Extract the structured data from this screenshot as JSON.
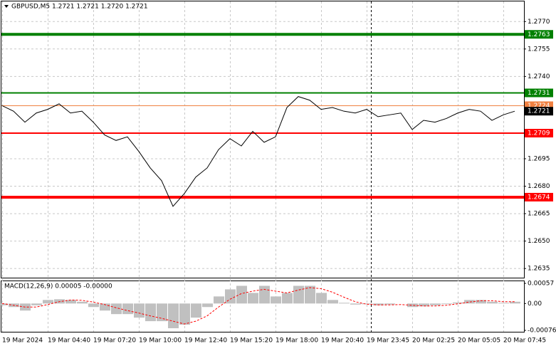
{
  "chart_data": [
    {
      "type": "line",
      "title": "GBPUSD,M5  1.2721 1.2721 1.2720 1.2721",
      "categories": [
        "19 Mar 2024",
        null,
        null,
        null,
        "19 Mar 04:40",
        null,
        null,
        null,
        "19 Mar 07:20",
        null,
        null,
        null,
        "19 Mar 10:00",
        null,
        null,
        null,
        "19 Mar 12:40",
        null,
        null,
        null,
        "19 Mar 15:20",
        null,
        null,
        null,
        "19 Mar 18:00",
        null,
        null,
        null,
        "19 Mar 20:40",
        null,
        null,
        null,
        "19 Mar 23:45",
        null,
        null,
        null,
        "20 Mar 02:25",
        null,
        null,
        null,
        "20 Mar 05:05",
        null,
        null,
        null,
        "20 Mar 07:45",
        null
      ],
      "values": [
        1.2724,
        1.2721,
        1.2715,
        1.272,
        1.2722,
        1.2725,
        1.272,
        1.2721,
        1.2715,
        1.2708,
        1.2705,
        1.2707,
        1.2699,
        1.269,
        1.2683,
        1.2669,
        1.2676,
        1.2685,
        1.269,
        1.27,
        1.2706,
        1.2702,
        1.271,
        1.2704,
        1.2707,
        1.2723,
        1.2729,
        1.2727,
        1.2722,
        1.2723,
        1.2721,
        1.272,
        1.2722,
        1.2718,
        1.2719,
        1.272,
        1.2711,
        1.2716,
        1.2715,
        1.2717,
        1.272,
        1.2722,
        1.2721,
        1.2716,
        1.2719,
        1.2721
      ],
      "color": "#000000",
      "ylim": [
        1.263,
        1.2781
      ],
      "yticks": [
        {
          "value": 1.277,
          "label": "1.2770"
        },
        1.2755,
        {
          "value": 1.274,
          "label": "1.2740"
        },
        1.2695,
        {
          "value": 1.268,
          "label": "1.2680"
        },
        1.2665,
        {
          "value": 1.265,
          "label": "1.2650"
        },
        1.2635
      ],
      "grid": true,
      "levels": [
        {
          "value": 1.2763,
          "color": "#008000",
          "width": 4
        },
        {
          "value": 1.2731,
          "color": "#008000",
          "width": 2
        },
        {
          "value": 1.2724,
          "color": "#f08040",
          "width": 1
        },
        {
          "value": 1.2709,
          "color": "#ff0000",
          "width": 2
        },
        {
          "value": 1.2674,
          "color": "#ff0000",
          "width": 4
        }
      ],
      "last_price": {
        "value": 1.2721,
        "color": "#000000"
      }
    },
    {
      "type": "bar",
      "title": "MACD(12,26,9) 0.00005 -0.00000",
      "values": [
        -5e-05,
        -0.0001,
        -0.0002,
        -5e-05,
        0.0001,
        0.00012,
        0.0001,
        5e-05,
        -0.0001,
        -0.0002,
        -0.0003,
        -0.0003,
        -0.0004,
        -0.0005,
        -0.0005,
        -0.0007,
        -0.0006,
        -0.0004,
        -0.0001,
        0.0002,
        0.0004,
        0.0005,
        0.0003,
        0.0005,
        0.0002,
        0.0003,
        0.0005,
        0.0005,
        0.0003,
        0.0001,
        2e-05,
        -3e-05,
        -2e-05,
        -5e-05,
        -3e-05,
        0,
        -0.0001,
        -8e-05,
        -5e-05,
        -2e-05,
        3e-05,
        0.0001,
        0.0001,
        5e-05,
        2e-05,
        5e-05
      ],
      "color": "#c0c0c0",
      "signal": {
        "color": "#ff0000",
        "values": [
          0,
          -5e-05,
          -0.0001,
          -0.0001,
          -3e-05,
          5e-05,
          0.0001,
          9e-05,
          4e-05,
          -3e-05,
          -0.00012,
          -0.0002,
          -0.00027,
          -0.00035,
          -0.00042,
          -0.0005,
          -0.00058,
          -0.0005,
          -0.00035,
          -0.0001,
          0.00012,
          0.00028,
          0.00035,
          0.0004,
          0.00035,
          0.0003,
          0.00038,
          0.00045,
          0.00042,
          0.00032,
          0.00018,
          5e-05,
          -2e-05,
          -4e-05,
          -4e-05,
          -3e-05,
          -5e-05,
          -7e-05,
          -7e-05,
          -5e-05,
          -1e-05,
          4e-05,
          8e-05,
          8e-05,
          5e-05,
          5e-05
        ]
      },
      "ylim": [
        -0.00076,
        0.00057
      ],
      "yticks": [
        0.00057,
        {
          "value": 0,
          "label": "0.00"
        },
        -0.00076
      ]
    }
  ]
}
